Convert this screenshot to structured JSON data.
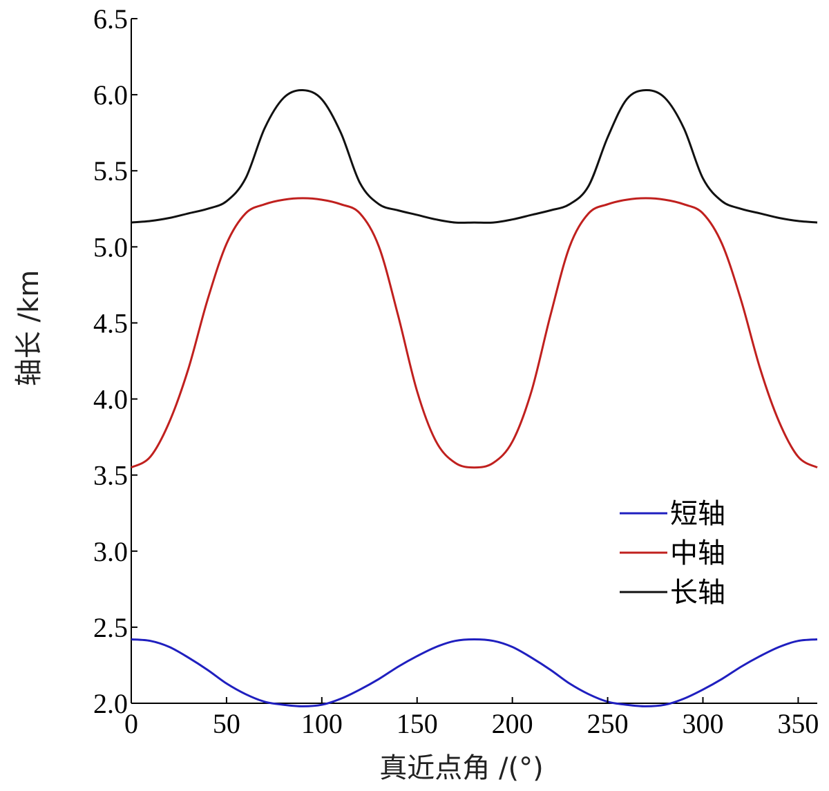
{
  "chart_data": {
    "type": "line",
    "xlabel": "真近点角 /(°)",
    "ylabel": "轴长 /km",
    "xlim": [
      0,
      360
    ],
    "ylim": [
      2.0,
      6.5
    ],
    "xticks": [
      "0",
      "50",
      "100",
      "150",
      "200",
      "250",
      "300",
      "350"
    ],
    "yticks": [
      "2.0",
      "2.5",
      "3.0",
      "3.5",
      "4.0",
      "4.5",
      "5.0",
      "5.5",
      "6.0",
      "6.5"
    ],
    "grid": false,
    "legend_position": "lower-right",
    "x": [
      0,
      10,
      20,
      30,
      40,
      50,
      60,
      70,
      80,
      90,
      100,
      110,
      120,
      130,
      140,
      150,
      160,
      170,
      180,
      190,
      200,
      210,
      220,
      230,
      240,
      250,
      260,
      270,
      280,
      290,
      300,
      310,
      320,
      330,
      340,
      350,
      360
    ],
    "series": [
      {
        "name": "短轴",
        "color": "#1f1fbf",
        "values": [
          2.42,
          2.41,
          2.37,
          2.3,
          2.22,
          2.13,
          2.06,
          2.01,
          1.99,
          1.98,
          1.99,
          2.03,
          2.09,
          2.16,
          2.24,
          2.31,
          2.37,
          2.41,
          2.42,
          2.41,
          2.37,
          2.3,
          2.22,
          2.13,
          2.06,
          2.01,
          1.99,
          1.98,
          1.99,
          2.03,
          2.09,
          2.16,
          2.24,
          2.31,
          2.37,
          2.41,
          2.42
        ]
      },
      {
        "name": "中轴",
        "color": "#c0201e",
        "values": [
          3.55,
          3.62,
          3.85,
          4.2,
          4.65,
          5.02,
          5.22,
          5.28,
          5.31,
          5.32,
          5.31,
          5.28,
          5.22,
          5.0,
          4.55,
          4.05,
          3.72,
          3.58,
          3.55,
          3.58,
          3.72,
          4.05,
          4.55,
          5.0,
          5.22,
          5.28,
          5.31,
          5.32,
          5.31,
          5.28,
          5.22,
          5.02,
          4.65,
          4.2,
          3.85,
          3.62,
          3.55
        ]
      },
      {
        "name": "长轴",
        "color": "#111111",
        "values": [
          5.16,
          5.17,
          5.19,
          5.22,
          5.25,
          5.3,
          5.45,
          5.78,
          5.98,
          6.03,
          5.97,
          5.75,
          5.42,
          5.28,
          5.24,
          5.21,
          5.18,
          5.16,
          5.16,
          5.16,
          5.18,
          5.21,
          5.24,
          5.28,
          5.4,
          5.72,
          5.97,
          6.03,
          5.98,
          5.78,
          5.45,
          5.3,
          5.25,
          5.22,
          5.19,
          5.17,
          5.16
        ]
      }
    ]
  }
}
